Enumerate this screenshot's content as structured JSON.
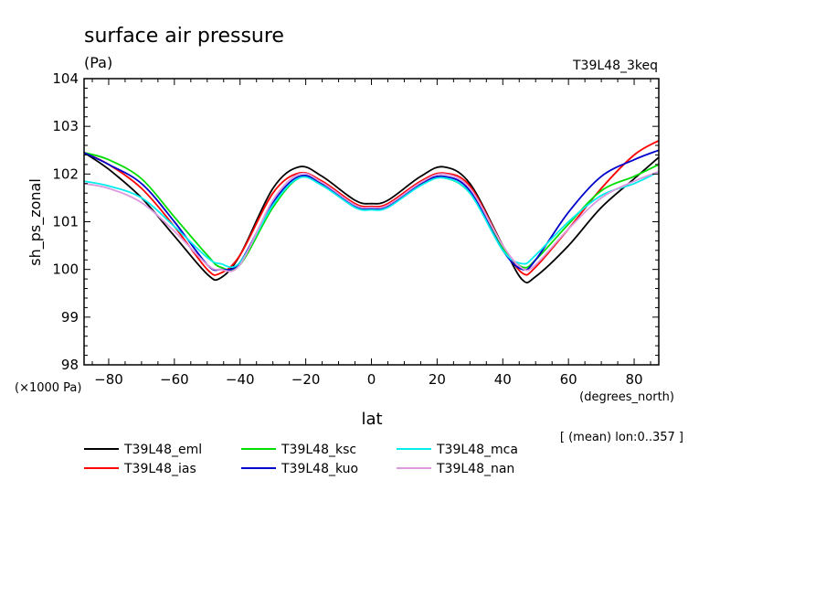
{
  "chart_data": {
    "type": "line",
    "title": "surface air pressure",
    "units_label": "(Pa)",
    "experiment": "T39L48_3keq",
    "ylabel": "sh_ps_zonal",
    "xlabel": "lat",
    "x_units": "(degrees_north)",
    "y_scale_note": "(×1000 Pa)",
    "subset_note": "[ (mean) lon:0..357 ]",
    "xlim": [
      -87.5,
      87.5
    ],
    "ylim": [
      98,
      104
    ],
    "x_ticks": [
      -80,
      -60,
      -40,
      -20,
      0,
      20,
      40,
      60,
      80
    ],
    "x_tick_labels": [
      "−80",
      "−60",
      "−40",
      "−20",
      "0",
      "20",
      "40",
      "60",
      "80"
    ],
    "y_ticks": [
      98,
      99,
      100,
      101,
      102,
      103,
      104
    ],
    "y_tick_labels": [
      "98",
      "99",
      "100",
      "101",
      "102",
      "103",
      "104"
    ],
    "x": [
      -87.5,
      -80,
      -70,
      -60,
      -50,
      -46,
      -40,
      -30,
      -22,
      -15,
      -5,
      0,
      5,
      15,
      22,
      30,
      40,
      46,
      50,
      60,
      70,
      80,
      87.5
    ],
    "series": [
      {
        "name": "T39L48_eml",
        "color": "#000000",
        "values": [
          102.45,
          102.1,
          101.5,
          100.7,
          99.9,
          99.82,
          100.3,
          101.7,
          102.15,
          101.95,
          101.45,
          101.38,
          101.45,
          101.95,
          102.15,
          101.8,
          100.5,
          99.78,
          99.85,
          100.5,
          101.3,
          101.9,
          102.35
        ]
      },
      {
        "name": "T39L48_ias",
        "color": "#ff0000",
        "values": [
          102.45,
          102.2,
          101.7,
          100.9,
          100.0,
          99.92,
          100.3,
          101.6,
          102.02,
          101.85,
          101.38,
          101.32,
          101.38,
          101.85,
          102.02,
          101.75,
          100.5,
          99.92,
          100.05,
          100.85,
          101.7,
          102.4,
          102.7
        ]
      },
      {
        "name": "T39L48_ksc",
        "color": "#00dd00",
        "values": [
          102.45,
          102.3,
          101.9,
          101.1,
          100.3,
          100.05,
          100.1,
          101.3,
          101.92,
          101.78,
          101.32,
          101.27,
          101.32,
          101.78,
          101.92,
          101.6,
          100.45,
          100.05,
          100.2,
          100.95,
          101.65,
          101.95,
          102.2
        ]
      },
      {
        "name": "T39L48_kuo",
        "color": "#0000cc",
        "values": [
          102.45,
          102.2,
          101.8,
          101.0,
          100.1,
          100.0,
          100.15,
          101.4,
          101.95,
          101.8,
          101.33,
          101.28,
          101.33,
          101.8,
          101.95,
          101.65,
          100.4,
          100.0,
          100.2,
          101.2,
          101.95,
          102.3,
          102.5
        ]
      },
      {
        "name": "T39L48_mca",
        "color": "#00eeee",
        "values": [
          101.85,
          101.75,
          101.5,
          100.9,
          100.25,
          100.12,
          100.15,
          101.35,
          101.92,
          101.76,
          101.3,
          101.25,
          101.3,
          101.76,
          101.92,
          101.6,
          100.4,
          100.12,
          100.3,
          101.0,
          101.55,
          101.8,
          102.05
        ]
      },
      {
        "name": "T39L48_nan",
        "color": "#dd99dd",
        "values": [
          101.8,
          101.7,
          101.4,
          100.8,
          100.1,
          100.0,
          100.1,
          101.45,
          102.0,
          101.82,
          101.35,
          101.3,
          101.35,
          101.82,
          102.0,
          101.7,
          100.5,
          100.02,
          100.1,
          100.85,
          101.5,
          101.85,
          102.05
        ]
      }
    ]
  }
}
